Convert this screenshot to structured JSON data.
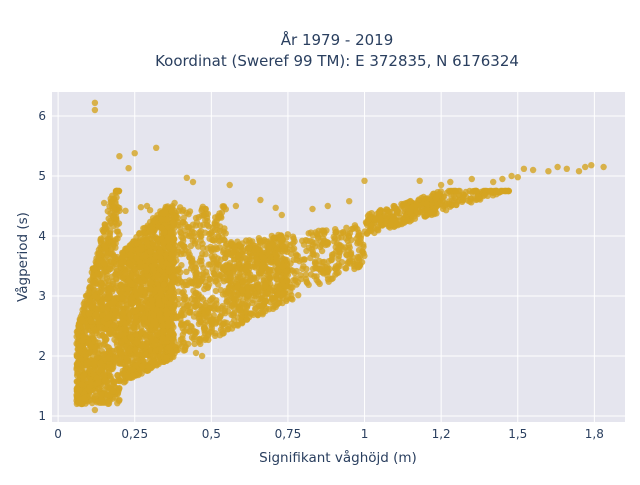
{
  "chart_data": {
    "type": "scatter",
    "title_lines": [
      "År 1979 - 2019",
      "Koordinat (Sweref 99 TM): E 372835, N 6176324"
    ],
    "xlabel": "Signifikant våghöjd (m)",
    "ylabel": "Vågperiod (s)",
    "xlim": [
      -0.02,
      1.85
    ],
    "ylim": [
      0.9,
      6.4
    ],
    "x_ticks": [
      0,
      0.25,
      0.5,
      0.75,
      1,
      1.25,
      1.5,
      1.75
    ],
    "x_tick_labels": [
      "0",
      "0,25",
      "0,5",
      "0,75",
      "1",
      "1,2",
      "1,5",
      "1,8"
    ],
    "y_ticks": [
      1,
      2,
      3,
      4,
      5,
      6
    ],
    "y_tick_labels": [
      "1",
      "2",
      "3",
      "4",
      "5",
      "6"
    ],
    "grid": true,
    "legend": "none",
    "colors": {
      "marker": "#d4a421",
      "plot_bg": "#e5e5ee",
      "grid": "#ffffff",
      "text": "#2a3f5f"
    },
    "series": [
      {
        "points_description": "dense cloud of wave height vs period observations",
        "outliers": [
          [
            0.12,
            6.22
          ],
          [
            0.12,
            6.1
          ],
          [
            0.32,
            5.47
          ],
          [
            0.25,
            5.38
          ],
          [
            0.2,
            5.33
          ],
          [
            0.23,
            5.13
          ],
          [
            0.42,
            4.97
          ],
          [
            0.56,
            4.85
          ],
          [
            0.44,
            4.9
          ],
          [
            1.0,
            4.92
          ],
          [
            0.15,
            4.55
          ],
          [
            0.18,
            4.45
          ],
          [
            0.2,
            4.42
          ],
          [
            0.22,
            4.42
          ],
          [
            0.29,
            4.5
          ],
          [
            0.38,
            4.55
          ],
          [
            0.47,
            4.45
          ],
          [
            0.52,
            4.1
          ],
          [
            0.45,
            4.3
          ],
          [
            0.58,
            4.5
          ],
          [
            0.27,
            4.48
          ],
          [
            0.3,
            4.43
          ],
          [
            0.34,
            4.38
          ],
          [
            0.14,
            3.22
          ],
          [
            0.12,
            3.0
          ],
          [
            0.47,
            2.0
          ],
          [
            0.45,
            2.05
          ],
          [
            0.26,
            1.92
          ],
          [
            0.12,
            1.1
          ],
          [
            0.66,
            4.6
          ],
          [
            0.71,
            4.47
          ],
          [
            0.73,
            4.35
          ],
          [
            1.18,
            4.92
          ],
          [
            1.25,
            4.85
          ],
          [
            1.28,
            4.9
          ],
          [
            1.35,
            4.95
          ],
          [
            1.45,
            4.95
          ],
          [
            1.52,
            5.12
          ],
          [
            1.55,
            5.1
          ],
          [
            1.6,
            5.08
          ],
          [
            1.63,
            5.15
          ],
          [
            1.66,
            5.12
          ],
          [
            1.7,
            5.08
          ],
          [
            1.72,
            5.15
          ],
          [
            1.74,
            5.18
          ],
          [
            1.78,
            5.15
          ],
          [
            1.48,
            5.0
          ],
          [
            1.42,
            4.9
          ],
          [
            1.5,
            4.98
          ],
          [
            0.88,
            4.5
          ],
          [
            0.83,
            4.45
          ],
          [
            0.95,
            4.58
          ]
        ]
      }
    ]
  }
}
